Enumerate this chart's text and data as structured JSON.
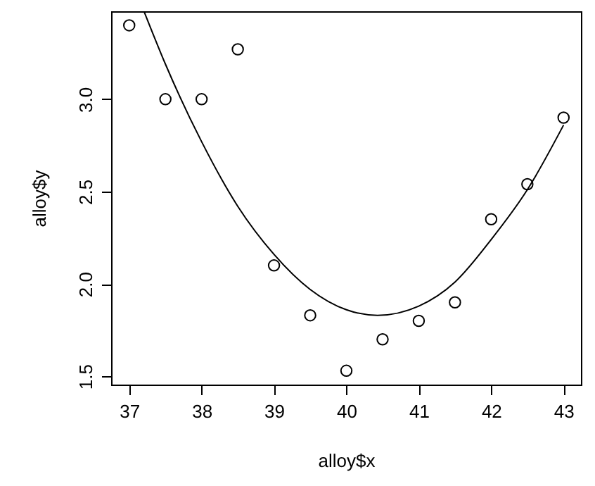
{
  "chart_data": {
    "type": "scatter",
    "xlabel": "alloy$x",
    "ylabel": "alloy$y",
    "xlim": [
      36.75,
      43.24
    ],
    "ylim": [
      1.455,
      3.476
    ],
    "xticks": [
      37,
      38,
      39,
      40,
      41,
      42,
      43
    ],
    "yticks": [
      1.5,
      {
        "value": 2,
        "label": "2.0"
      },
      2.5,
      {
        "value": 3,
        "label": "3.0"
      }
    ],
    "grid": false,
    "series": [
      {
        "color": "#000000",
        "marker": "circle",
        "x": [
          37,
          37.5,
          38,
          38.5,
          39,
          39.5,
          40,
          40.5,
          41,
          41.5,
          42,
          42.5,
          43
        ],
        "values": [
          3.4,
          3.0,
          3.0,
          3.27,
          2.1,
          1.83,
          1.53,
          1.7,
          1.8,
          1.9,
          2.35,
          2.54,
          2.9
        ]
      },
      {
        "type": "line",
        "color": "#000000",
        "marker": "none",
        "line_style": "solid",
        "x": [
          37.21,
          37.5,
          38,
          38.5,
          39,
          39.5,
          40,
          40.43,
          41,
          41.5,
          42,
          42.5,
          43
        ],
        "values": [
          3.47,
          3.19,
          2.77,
          2.42,
          2.16,
          1.97,
          1.86,
          1.83,
          1.88,
          2.01,
          2.24,
          2.51,
          2.86
        ]
      }
    ]
  }
}
